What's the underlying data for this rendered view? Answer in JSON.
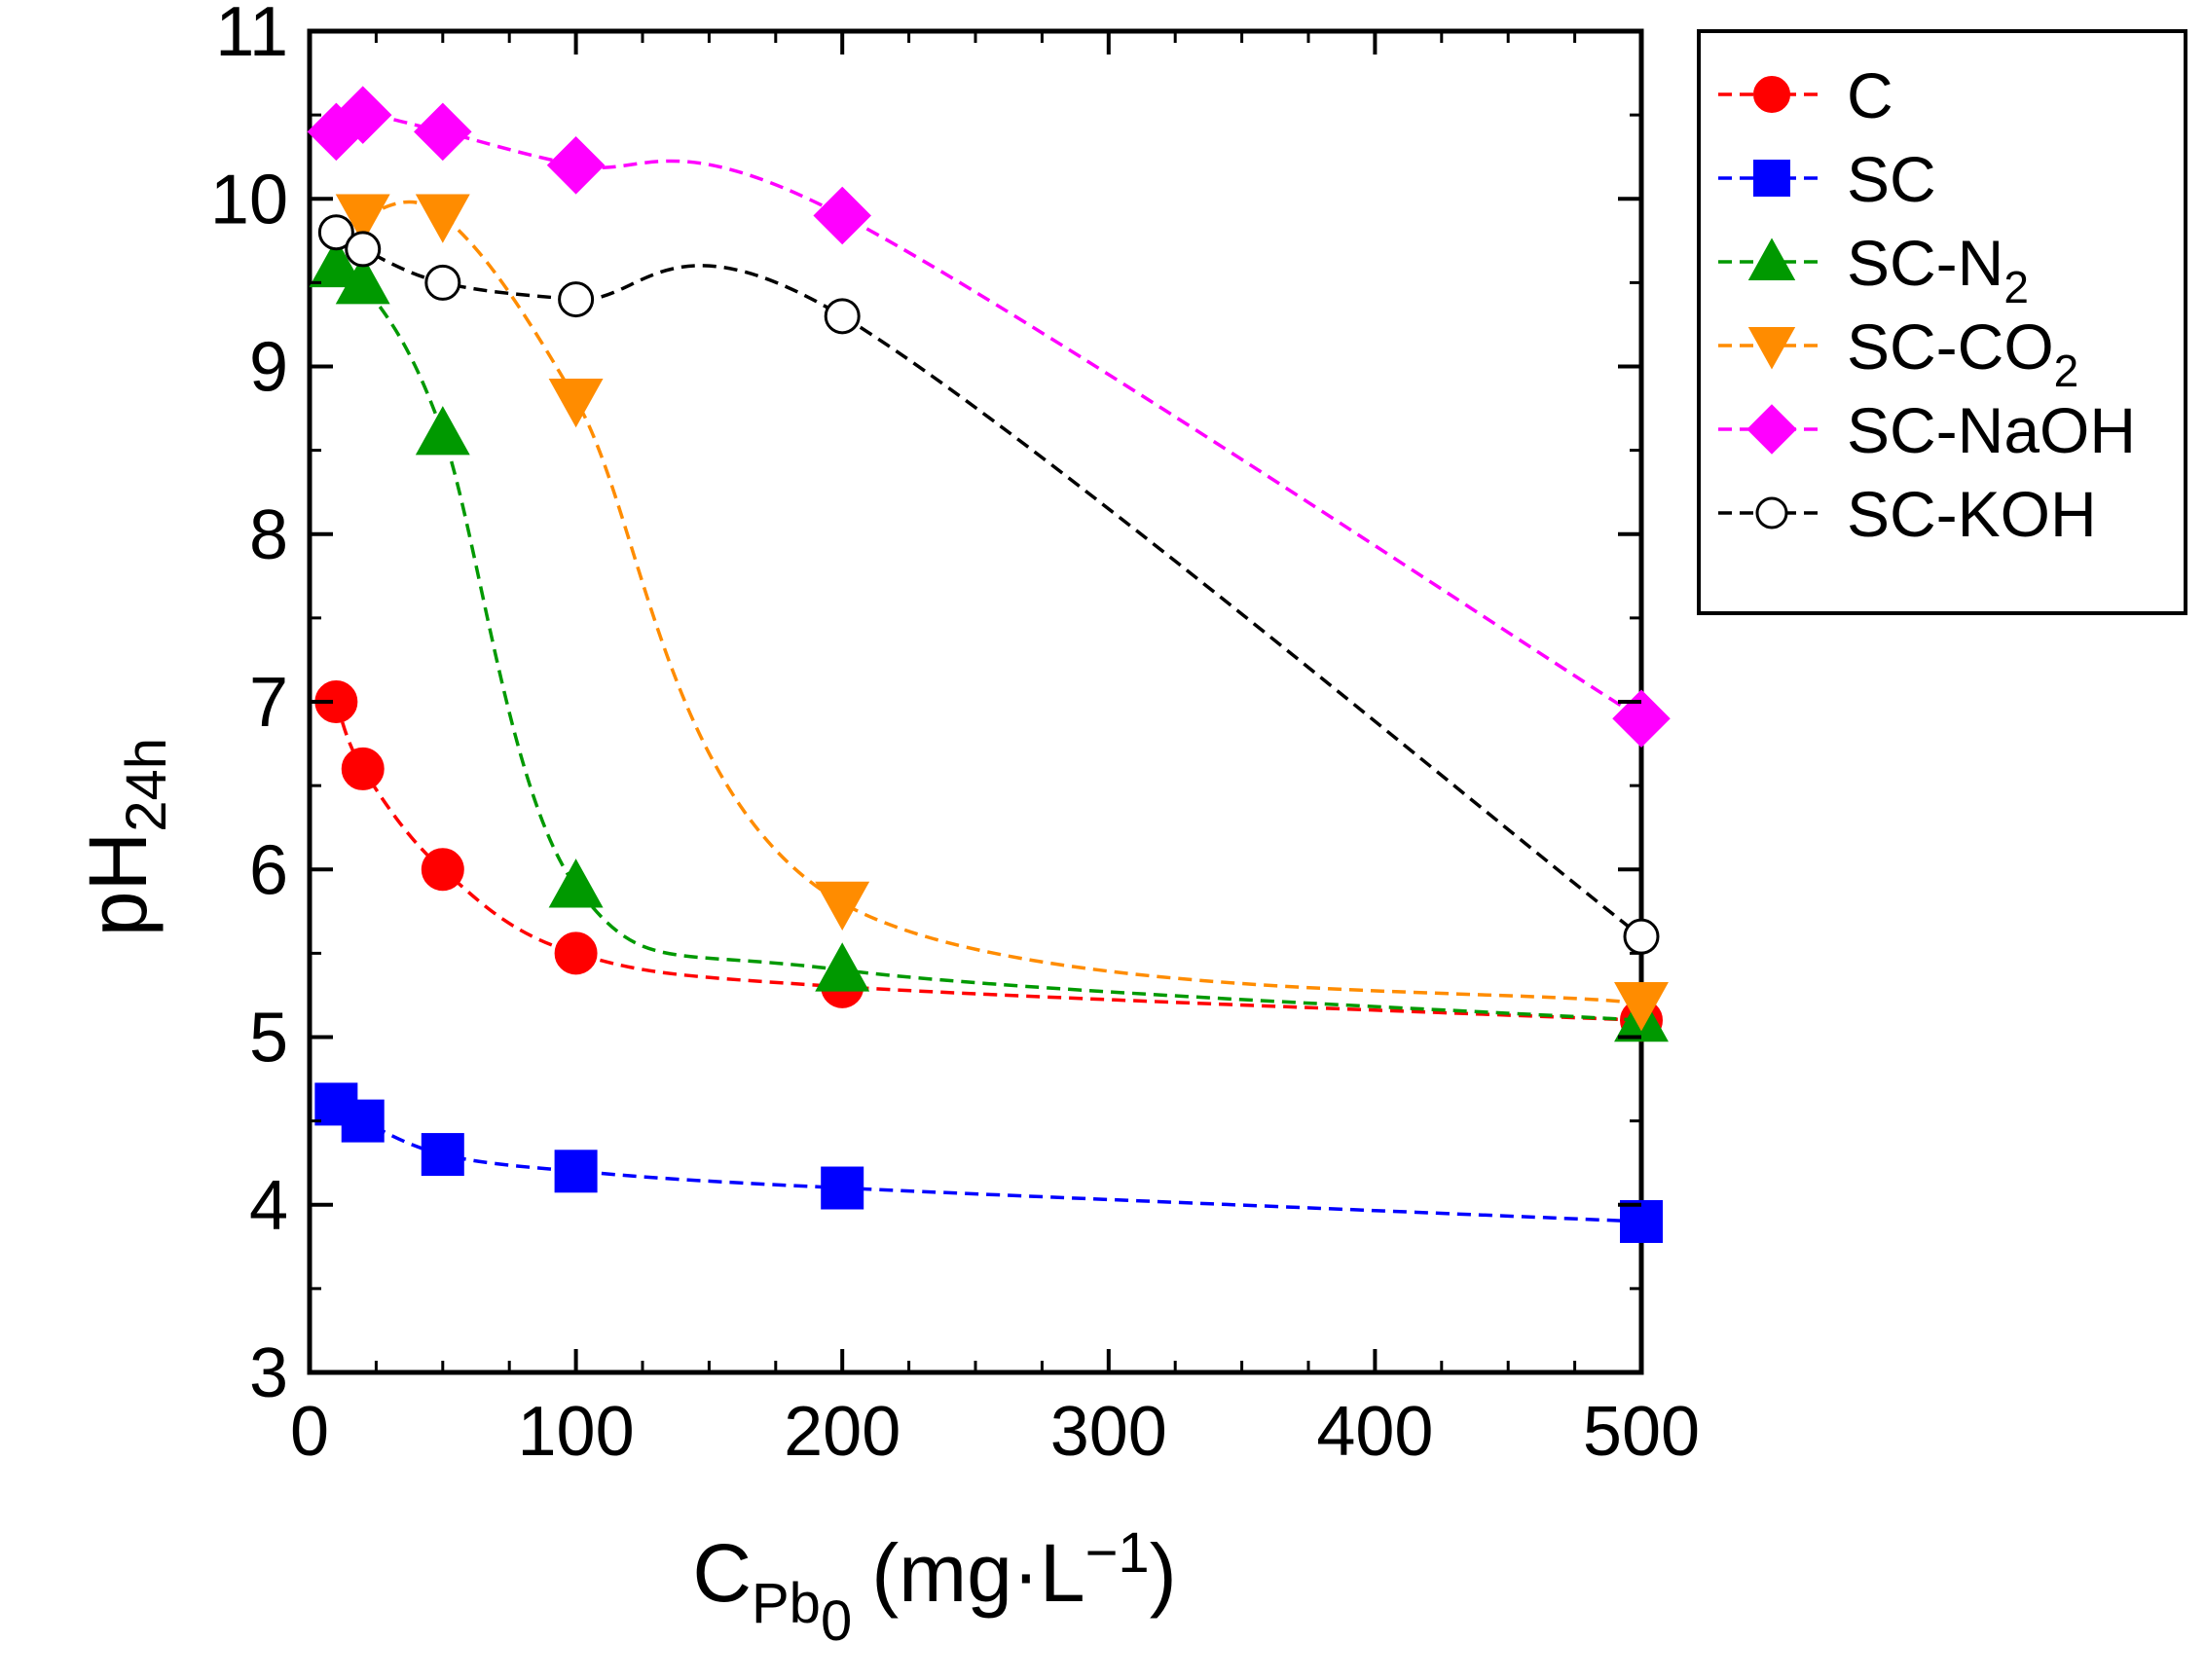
{
  "chart_data": {
    "type": "line",
    "xlabel": {
      "main": "C",
      "sub": "Pb",
      "subsub": "0",
      "unit": "(mg·L",
      "sup": "−1",
      "close": ")"
    },
    "ylabel": {
      "main": "pH",
      "sub": "24h"
    },
    "xlim": [
      0,
      500
    ],
    "ylim": [
      3,
      11
    ],
    "xticks": [
      0,
      100,
      200,
      300,
      400,
      500
    ],
    "yticks": [
      3,
      4,
      5,
      6,
      7,
      8,
      9,
      10,
      11
    ],
    "grid": false,
    "legend_position": "outside-top-right",
    "series": [
      {
        "name": "C",
        "label_main": "C",
        "label_sub": "",
        "color": "#ff0000",
        "marker": "circle",
        "filled": true,
        "x": [
          10,
          20,
          50,
          100,
          200,
          500
        ],
        "y": [
          7.0,
          6.6,
          6.0,
          5.5,
          5.3,
          5.1
        ]
      },
      {
        "name": "SC",
        "label_main": "SC",
        "label_sub": "",
        "color": "#0000ff",
        "marker": "square",
        "filled": true,
        "x": [
          10,
          20,
          50,
          100,
          200,
          500
        ],
        "y": [
          4.6,
          4.5,
          4.3,
          4.2,
          4.1,
          3.9
        ]
      },
      {
        "name": "SC-N2",
        "label_main": "SC-N",
        "label_sub": "2",
        "color": "#009900",
        "marker": "triangle-up",
        "filled": true,
        "x": [
          10,
          20,
          50,
          100,
          200,
          500
        ],
        "y": [
          9.6,
          9.5,
          8.6,
          5.9,
          5.4,
          5.1
        ]
      },
      {
        "name": "SC-CO2",
        "label_main": "SC-CO",
        "label_sub": "2",
        "color": "#ff8c00",
        "marker": "triangle-down",
        "filled": true,
        "x": [
          20,
          50,
          100,
          200,
          500
        ],
        "y": [
          9.9,
          9.9,
          8.8,
          5.8,
          5.2
        ]
      },
      {
        "name": "SC-NaOH",
        "label_main": "SC-NaOH",
        "label_sub": "",
        "color": "#ff00ff",
        "marker": "diamond",
        "filled": true,
        "x": [
          10,
          20,
          50,
          100,
          200,
          500
        ],
        "y": [
          10.4,
          10.5,
          10.4,
          10.2,
          9.9,
          6.9
        ]
      },
      {
        "name": "SC-KOH",
        "label_main": "SC-KOH",
        "label_sub": "",
        "color": "#000000",
        "marker": "circle",
        "filled": false,
        "x": [
          10,
          20,
          50,
          100,
          200,
          500
        ],
        "y": [
          9.8,
          9.7,
          9.5,
          9.4,
          9.3,
          5.6
        ]
      }
    ]
  }
}
